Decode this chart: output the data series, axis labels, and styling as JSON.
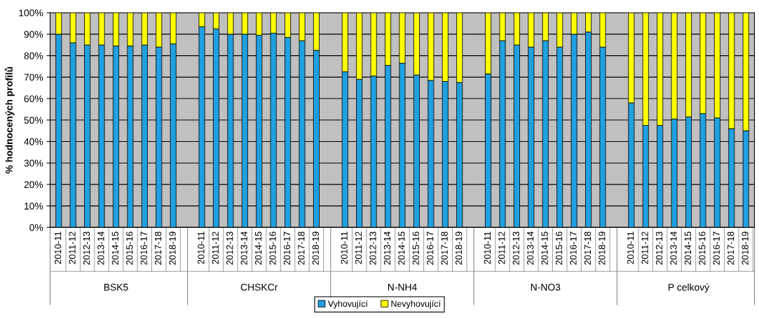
{
  "chart_data": {
    "type": "bar",
    "stacked": true,
    "ylabel": "% hodnocených profilů",
    "categories": [
      "2010-11",
      "2011-12",
      "2012-13",
      "2013-14",
      "2014-15",
      "2015-16",
      "2016-17",
      "2017-18",
      "2018-19",
      null,
      "2010-11",
      "2011-12",
      "2012-13",
      "2013-14",
      "2014-15",
      "2015-16",
      "2016-17",
      "2017-18",
      "2018-19",
      null,
      "2010-11",
      "2011-12",
      "2012-13",
      "2013-14",
      "2014-15",
      "2015-16",
      "2016-17",
      "2017-18",
      "2018-19",
      null,
      "2010-11",
      "2011-12",
      "2012-13",
      "2013-14",
      "2014-15",
      "2015-16",
      "2016-17",
      "2017-18",
      "2018-19",
      null,
      "2010-11",
      "2011-12",
      "2012-13",
      "2013-14",
      "2014-15",
      "2015-16",
      "2016-17",
      "2017-18",
      "2018-19"
    ],
    "series": [
      {
        "name": "Vyhovující",
        "color": "#21a0e0",
        "values": [
          90,
          86,
          85,
          85,
          84.5,
          84.5,
          85,
          84,
          85.5,
          null,
          93.5,
          92.5,
          90,
          90,
          89.5,
          90.5,
          88.5,
          87,
          82.5,
          null,
          72.5,
          69,
          70.5,
          75.5,
          76.5,
          71,
          68.5,
          68,
          67.5,
          null,
          71.5,
          87,
          85,
          84,
          87,
          84,
          90,
          91,
          84,
          null,
          58,
          47.5,
          47.5,
          50.5,
          51.5,
          53,
          51,
          46,
          45
        ]
      },
      {
        "name": "Nevyhovující",
        "color": "#ffff00",
        "values": [
          10,
          14,
          15,
          15,
          15.5,
          15.5,
          15,
          16,
          14.5,
          null,
          6.5,
          7.5,
          10,
          10,
          10.5,
          9.5,
          11.5,
          13,
          17.5,
          null,
          27.5,
          31,
          29.5,
          24.5,
          23.5,
          29,
          31.5,
          32,
          32.5,
          null,
          28.5,
          13,
          15,
          16,
          13,
          16,
          10,
          9,
          16,
          null,
          42,
          52.5,
          52.5,
          49.5,
          48.5,
          47,
          49,
          54,
          55
        ]
      }
    ],
    "annotations": [
      "BSK5",
      "CHSKCr",
      "N-NH4",
      "N-NO3",
      "P celkový"
    ],
    "ylim": [
      0,
      100
    ],
    "yticks": [
      {
        "value": 0,
        "label": "0%"
      },
      {
        "value": 10,
        "label": "10%"
      },
      {
        "value": 20,
        "label": "20%"
      },
      {
        "value": 30,
        "label": "30%"
      },
      {
        "value": 40,
        "label": "40%"
      },
      {
        "value": 50,
        "label": "50%"
      },
      {
        "value": 60,
        "label": "60%"
      },
      {
        "value": 70,
        "label": "70%"
      },
      {
        "value": 80,
        "label": "80%"
      },
      {
        "value": 90,
        "label": "90%"
      },
      {
        "value": 100,
        "label": "100%"
      }
    ],
    "grid": "y",
    "legend": "bottom"
  }
}
